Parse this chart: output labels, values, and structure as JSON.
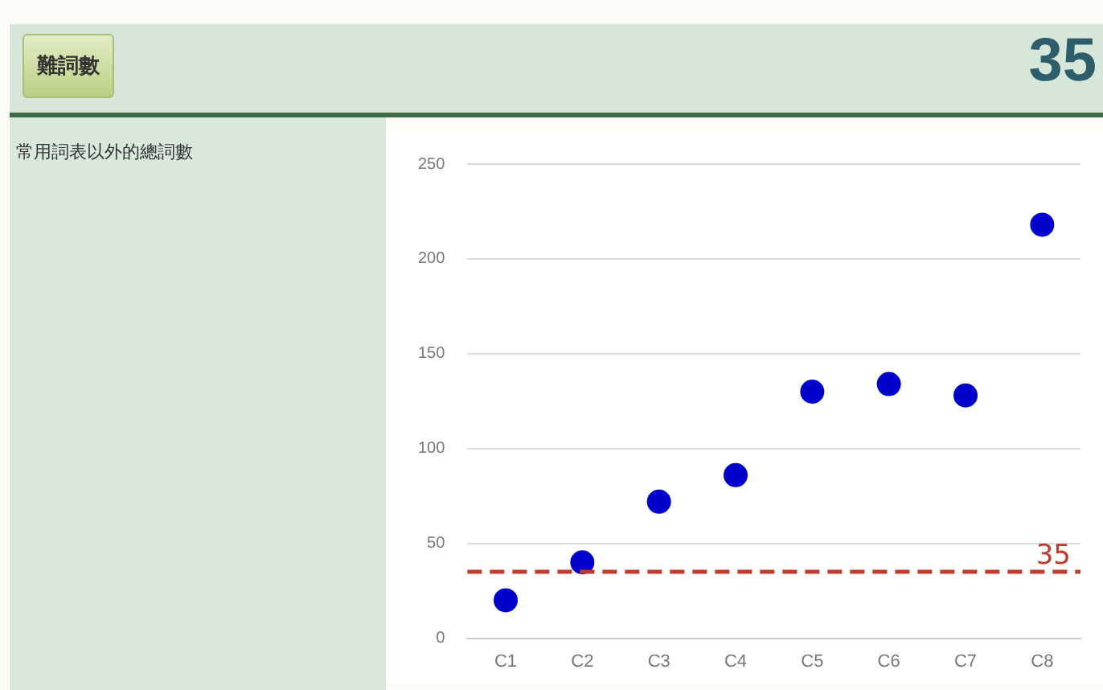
{
  "chart_data": {
    "type": "scatter",
    "title": "難詞數",
    "annotations": [
      "35",
      "常用詞表以外的總詞數"
    ],
    "categories": [
      "C1",
      "C2",
      "C3",
      "C4",
      "C5",
      "C6",
      "C7",
      "C8"
    ],
    "series": [
      {
        "color": "#0000cc",
        "values": [
          20,
          40,
          72,
          86,
          130,
          134,
          128,
          218
        ]
      }
    ],
    "ylim": [
      0,
      250
    ],
    "yticks": [
      0,
      50,
      100,
      150,
      200,
      250
    ],
    "grid": "y",
    "marker": "circle",
    "legend": false,
    "ref_lines": [
      {
        "axis": "y",
        "value": 35,
        "label": "35",
        "color": "#c0392b",
        "line_style": "dashed"
      }
    ]
  }
}
